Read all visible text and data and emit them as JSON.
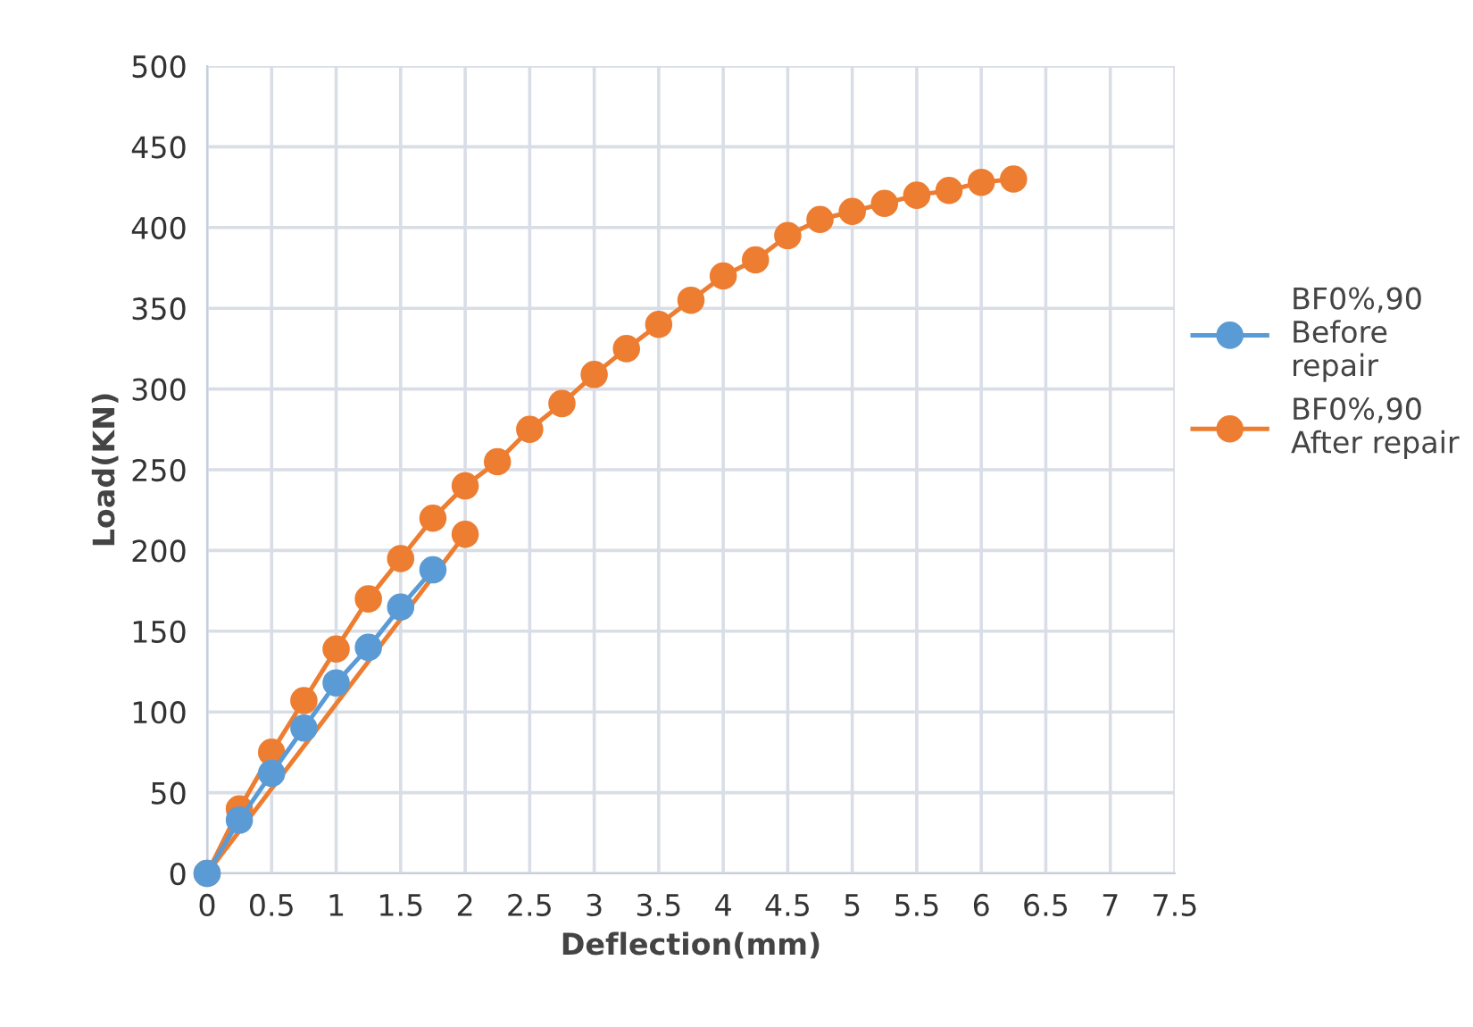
{
  "chart_data": {
    "type": "line",
    "xlabel": "Deflection(mm)",
    "ylabel": "Load(KN)",
    "xlim": [
      0,
      7.5
    ],
    "xticks": [
      0,
      0.5,
      1,
      1.5,
      2,
      2.5,
      3,
      3.5,
      4,
      4.5,
      5,
      5.5,
      6,
      6.5,
      7,
      7.5
    ],
    "ylim": [
      0,
      500
    ],
    "yticks": [
      0,
      50,
      100,
      150,
      200,
      250,
      300,
      350,
      400,
      450,
      500
    ],
    "grid": true,
    "legend": "right",
    "marker": "circle",
    "line_style": "solid",
    "series": [
      {
        "name": "BF0%,90\nBefore\nrepair",
        "color": "#5b9bd5",
        "x": [
          0,
          0.25,
          0.5,
          0.75,
          1,
          1.25,
          1.5,
          1.75
        ],
        "values": [
          0,
          33,
          62,
          90,
          118,
          140,
          165,
          188
        ]
      },
      {
        "name": "BF0%,90\nAfter repair",
        "color": "#ed7d31",
        "x": [
          2,
          0,
          0.25,
          0.5,
          0.75,
          1,
          1.25,
          1.5,
          1.75,
          2,
          2.25,
          2.5,
          2.75,
          3,
          3.25,
          3.5,
          3.75,
          4,
          4.25,
          4.5,
          4.75,
          5,
          5.25,
          5.5,
          5.75,
          6,
          6.25
        ],
        "values": [
          210,
          0,
          40,
          75,
          107,
          139,
          170,
          195,
          220,
          240,
          255,
          275,
          291,
          309,
          325,
          340,
          355,
          370,
          380,
          395,
          405,
          410,
          415,
          420,
          423,
          428,
          430
        ]
      }
    ]
  }
}
